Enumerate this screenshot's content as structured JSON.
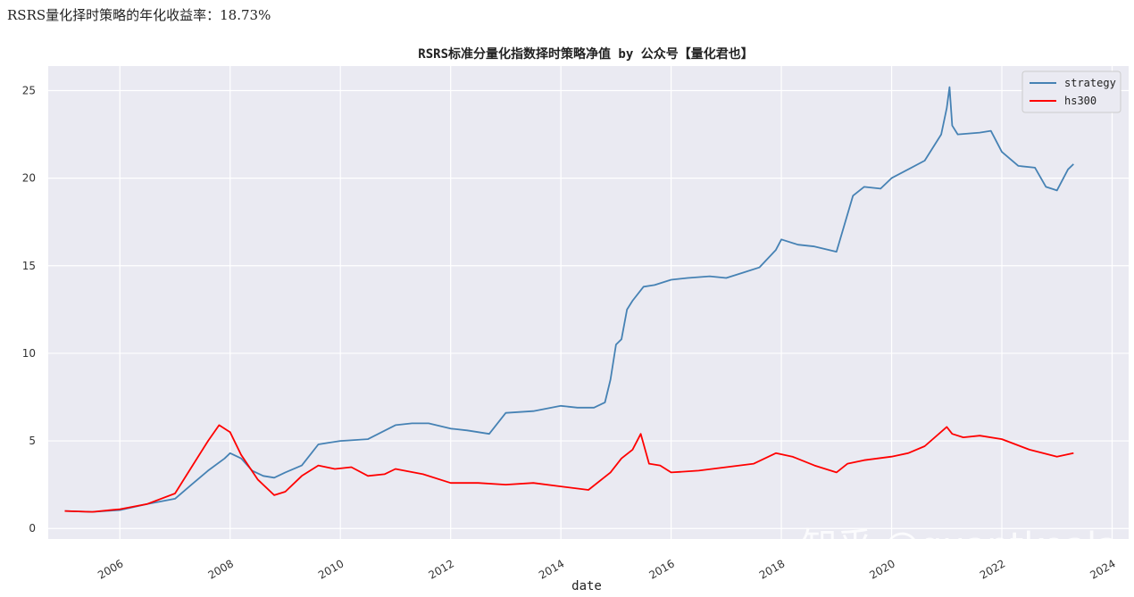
{
  "header": {
    "text": "RSRS量化择时策略的年化收益率：18.73%"
  },
  "watermark": "知乎 @quantkoala",
  "chart_data": {
    "type": "line",
    "title": "RSRS标准分量化指数择时策略净值  by 公众号【量化君也】",
    "xlabel": "date",
    "ylabel": "",
    "xlim": [
      2004.7,
      2024.3
    ],
    "ylim": [
      -0.6,
      26.4
    ],
    "x_ticks": [
      2006,
      2008,
      2010,
      2012,
      2014,
      2016,
      2018,
      2020,
      2022,
      2024
    ],
    "y_ticks": [
      0,
      5,
      10,
      15,
      20,
      25
    ],
    "grid": true,
    "legend_position": "top-right",
    "series": [
      {
        "name": "strategy",
        "color": "#4682B4",
        "x": [
          2005.0,
          2005.5,
          2006.0,
          2006.5,
          2007.0,
          2007.3,
          2007.6,
          2007.9,
          2008.0,
          2008.2,
          2008.4,
          2008.6,
          2008.8,
          2009.0,
          2009.3,
          2009.6,
          2009.8,
          2010.0,
          2010.5,
          2011.0,
          2011.3,
          2011.6,
          2012.0,
          2012.3,
          2012.7,
          2013.0,
          2013.5,
          2014.0,
          2014.3,
          2014.6,
          2014.8,
          2014.9,
          2015.0,
          2015.1,
          2015.2,
          2015.3,
          2015.5,
          2015.7,
          2016.0,
          2016.3,
          2016.7,
          2017.0,
          2017.3,
          2017.6,
          2017.9,
          2018.0,
          2018.3,
          2018.6,
          2019.0,
          2019.3,
          2019.5,
          2019.8,
          2020.0,
          2020.3,
          2020.6,
          2020.9,
          2021.0,
          2021.05,
          2021.1,
          2021.2,
          2021.6,
          2021.8,
          2022.0,
          2022.3,
          2022.6,
          2022.8,
          2022.9,
          2023.0,
          2023.2,
          2023.3
        ],
        "y": [
          1.0,
          0.95,
          1.05,
          1.4,
          1.7,
          2.5,
          3.3,
          4.0,
          4.3,
          4.0,
          3.3,
          3.0,
          2.9,
          3.2,
          3.6,
          4.8,
          4.9,
          5.0,
          5.1,
          5.9,
          6.0,
          6.0,
          5.7,
          5.6,
          5.4,
          6.6,
          6.7,
          7.0,
          6.9,
          6.9,
          7.2,
          8.5,
          10.5,
          10.8,
          12.5,
          13.0,
          13.8,
          13.9,
          14.2,
          14.3,
          14.4,
          14.3,
          14.6,
          14.9,
          15.9,
          16.5,
          16.2,
          16.1,
          15.8,
          19.0,
          19.5,
          19.4,
          20.0,
          20.5,
          21.0,
          22.5,
          24.0,
          25.2,
          23.0,
          22.5,
          22.6,
          22.7,
          21.5,
          20.7,
          20.6,
          19.5,
          19.4,
          19.3,
          20.5,
          20.8
        ]
      },
      {
        "name": "hs300",
        "color": "#FF0000",
        "x": [
          2005.0,
          2005.5,
          2006.0,
          2006.5,
          2007.0,
          2007.3,
          2007.6,
          2007.8,
          2008.0,
          2008.2,
          2008.5,
          2008.8,
          2009.0,
          2009.3,
          2009.6,
          2009.9,
          2010.2,
          2010.5,
          2010.8,
          2011.0,
          2011.5,
          2012.0,
          2012.5,
          2013.0,
          2013.5,
          2014.0,
          2014.5,
          2014.9,
          2015.1,
          2015.3,
          2015.45,
          2015.6,
          2015.8,
          2016.0,
          2016.5,
          2017.0,
          2017.5,
          2017.9,
          2018.2,
          2018.6,
          2019.0,
          2019.2,
          2019.5,
          2020.0,
          2020.3,
          2020.6,
          2021.0,
          2021.1,
          2021.3,
          2021.6,
          2022.0,
          2022.5,
          2023.0,
          2023.3
        ],
        "y": [
          1.0,
          0.95,
          1.1,
          1.4,
          2.0,
          3.5,
          5.0,
          5.9,
          5.5,
          4.2,
          2.8,
          1.9,
          2.1,
          3.0,
          3.6,
          3.4,
          3.5,
          3.0,
          3.1,
          3.4,
          3.1,
          2.6,
          2.6,
          2.5,
          2.6,
          2.4,
          2.2,
          3.2,
          4.0,
          4.5,
          5.4,
          3.7,
          3.6,
          3.2,
          3.3,
          3.5,
          3.7,
          4.3,
          4.1,
          3.6,
          3.2,
          3.7,
          3.9,
          4.1,
          4.3,
          4.7,
          5.8,
          5.4,
          5.2,
          5.3,
          5.1,
          4.5,
          4.1,
          4.3
        ]
      }
    ]
  }
}
